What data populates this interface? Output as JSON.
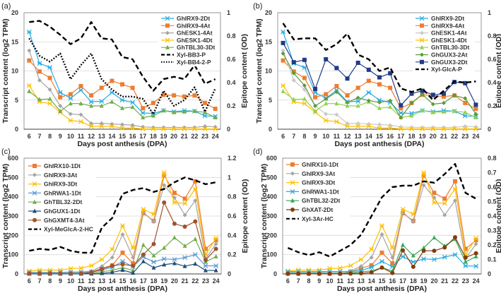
{
  "chart_data": [
    {
      "panel_label": "(a)",
      "type": "line",
      "xlabel": "Days post anthesis (DPA)",
      "ylabel": "Transcript content (log2 TPM)",
      "y2label": "Epitope content (OD)",
      "x": [
        6,
        7,
        8,
        9,
        10,
        11,
        12,
        13,
        14,
        15,
        16,
        17,
        18,
        19,
        20,
        21,
        22,
        23,
        24
      ],
      "ylim": [
        0,
        20
      ],
      "yticks": [
        0,
        5,
        10,
        15,
        20
      ],
      "y2lim": [
        0,
        1
      ],
      "y2ticks": [
        "0",
        "0.2",
        "0.4",
        "0.6",
        "0.8",
        "1"
      ],
      "grid": true,
      "legend": "top-right",
      "series": [
        {
          "name": "GhIRX9-2Dt",
          "axis": "left",
          "color": "#29abe2",
          "marker": "x",
          "values": [
            16.7,
            11.3,
            10.6,
            6.3,
            5.3,
            6.7,
            4.7,
            4.8,
            6.3,
            5.0,
            4.6,
            2.8,
            2.7,
            3.2,
            3.0,
            3.2,
            3.1,
            2.3,
            2.2
          ]
        },
        {
          "name": "GhIRX9-4At",
          "axis": "left",
          "color": "#ed7d31",
          "marker": "square",
          "values": [
            11.8,
            9.9,
            8.8,
            5.5,
            6.0,
            7.4,
            5.8,
            7.1,
            8.3,
            7.7,
            7.1,
            3.6,
            4.5,
            5.9,
            5.8,
            5.6,
            5.8,
            4.5,
            3.5
          ]
        },
        {
          "name": "GhESK1-4At",
          "axis": "left",
          "color": "#a5a5a5",
          "marker": "diamond",
          "values": [
            13.5,
            8.4,
            6.8,
            4.0,
            2.6,
            2.5,
            1.0,
            1.0,
            0.9,
            0.8,
            0.7,
            0.4,
            0.3,
            0.3,
            0.3,
            0.3,
            0.3,
            0.5,
            0.4
          ]
        },
        {
          "name": "GhESK1-4Dt",
          "axis": "left",
          "color": "#ffc000",
          "marker": "x",
          "values": [
            7.5,
            4.7,
            4.4,
            2.9,
            1.5,
            1.3,
            0.5,
            0.5,
            0.5,
            0.2,
            0.2,
            0.05,
            0.05,
            0.05,
            0.05,
            0.05,
            0.05,
            0.05,
            0.05
          ]
        },
        {
          "name": "GhTBL30-3Dt",
          "axis": "left",
          "color": "#70ad47",
          "marker": "triangle",
          "values": [
            6.5,
            5.1,
            5.2,
            3.1,
            4.4,
            4.4,
            4.0,
            4.0,
            4.7,
            3.6,
            3.8,
            2.0,
            2.3,
            3.2,
            2.9,
            3.0,
            3.1,
            2.9,
            2.0
          ]
        },
        {
          "name": "Xyl-BB3-P",
          "axis": "right",
          "color": "#000000",
          "dash": "dash",
          "values": [
            0.92,
            0.93,
            0.88,
            0.81,
            0.73,
            0.78,
            0.92,
            0.78,
            0.77,
            0.62,
            0.6,
            0.45,
            0.33,
            0.43,
            0.45,
            0.43,
            0.55,
            0.39,
            0.43
          ]
        },
        {
          "name": "Xyl-BB4-2-P",
          "axis": "right",
          "color": "#000000",
          "dash": "dot",
          "values": [
            0.78,
            0.63,
            0.58,
            0.65,
            0.43,
            0.55,
            0.65,
            0.43,
            0.34,
            0.28,
            0.28,
            0.26,
            0.13,
            0.33,
            0.2,
            0.25,
            0.36,
            0.15,
            0.35
          ]
        }
      ]
    },
    {
      "panel_label": "(b)",
      "type": "line",
      "xlabel": "Days post anthesis (DPA)",
      "ylabel": "Transcript content (log2 TPM)",
      "y2label": "Epitope content (OD)",
      "x": [
        6,
        7,
        8,
        9,
        10,
        11,
        12,
        13,
        14,
        15,
        16,
        17,
        18,
        19,
        20,
        21,
        22,
        23,
        24
      ],
      "ylim": [
        0,
        20
      ],
      "yticks": [
        0,
        5,
        10,
        15,
        20
      ],
      "y2lim": [
        0,
        1
      ],
      "y2ticks": [
        "0",
        "0.2",
        "0.4",
        "0.6",
        "0.8",
        "1"
      ],
      "grid": true,
      "legend": "top-right",
      "series": [
        {
          "name": "GhIRX9-2Dt",
          "axis": "left",
          "color": "#29abe2",
          "marker": "x",
          "values": [
            16.7,
            11.3,
            10.6,
            6.3,
            5.3,
            6.7,
            4.7,
            4.8,
            6.3,
            5.0,
            4.6,
            2.8,
            2.7,
            3.2,
            3.0,
            3.2,
            3.1,
            2.3,
            2.2
          ]
        },
        {
          "name": "GhIRX9-4At",
          "axis": "left",
          "color": "#ed7d31",
          "marker": "square",
          "values": [
            11.8,
            9.9,
            8.8,
            5.5,
            6.0,
            7.4,
            5.8,
            7.1,
            8.3,
            7.7,
            7.1,
            3.6,
            4.5,
            5.9,
            5.8,
            5.6,
            5.8,
            4.5,
            3.5
          ]
        },
        {
          "name": "GhESK1-4At",
          "axis": "left",
          "color": "#c9c9c9",
          "marker": "diamond",
          "values": [
            13.5,
            8.4,
            6.8,
            4.0,
            2.6,
            2.5,
            1.0,
            1.0,
            0.9,
            0.8,
            0.7,
            0.4,
            0.3,
            0.3,
            0.3,
            0.3,
            0.3,
            0.5,
            0.4
          ]
        },
        {
          "name": "GhESK1-4Dt",
          "axis": "left",
          "color": "#ffc000",
          "marker": "x",
          "values": [
            7.5,
            4.7,
            4.4,
            2.9,
            1.5,
            1.3,
            0.5,
            0.5,
            0.5,
            0.2,
            0.2,
            0.05,
            0.05,
            0.05,
            0.05,
            0.05,
            0.05,
            0.05,
            0.05
          ]
        },
        {
          "name": "GhTBL30-3Dt",
          "axis": "left",
          "color": "#92d050",
          "marker": "triangle",
          "values": [
            6.5,
            5.1,
            5.2,
            3.1,
            4.4,
            4.4,
            4.0,
            4.0,
            4.7,
            3.6,
            3.8,
            2.0,
            2.3,
            3.2,
            2.9,
            3.0,
            3.1,
            2.9,
            2.0
          ]
        },
        {
          "name": "GhGUX3-2At",
          "axis": "left",
          "color": "#5b9b3a",
          "marker": "diamond",
          "values": [
            13.0,
            9.6,
            7.5,
            4.0,
            5.2,
            6.4,
            4.6,
            5.4,
            4.9,
            4.6,
            4.9,
            2.0,
            4.5,
            6.0,
            4.3,
            4.5,
            5.8,
            5.3,
            2.6
          ]
        },
        {
          "name": "GhGUX3-2Dt",
          "axis": "left",
          "color": "#1f3c88",
          "marker": "square",
          "values": [
            14.8,
            11.5,
            11.9,
            6.9,
            12.0,
            10.5,
            8.7,
            11.4,
            10.2,
            8.9,
            9.6,
            4.1,
            6.1,
            6.6,
            5.9,
            6.1,
            8.1,
            7.9,
            4.2
          ]
        },
        {
          "name": "Xyl-GlcA-P",
          "axis": "right",
          "color": "#000000",
          "dash": "dash",
          "values": [
            0.91,
            0.77,
            0.78,
            0.78,
            0.68,
            0.73,
            0.82,
            0.64,
            0.6,
            0.5,
            0.53,
            0.35,
            0.32,
            0.35,
            0.25,
            0.33,
            0.41,
            0.4,
            0.41
          ]
        }
      ]
    },
    {
      "panel_label": "(c)",
      "type": "line",
      "xlabel": "Days post anthesis (DPA)",
      "ylabel": "Transcript content (log2 TPM)",
      "y2label": "Epitope content (OD)",
      "x": [
        6,
        7,
        8,
        9,
        10,
        11,
        12,
        13,
        14,
        15,
        16,
        17,
        18,
        19,
        20,
        21,
        22,
        23,
        24
      ],
      "ylim": [
        0,
        600
      ],
      "yticks": [
        0,
        100,
        200,
        300,
        400,
        500,
        600
      ],
      "y2lim": [
        0,
        1.2
      ],
      "y2ticks": [
        "0",
        "0.2",
        "0.4",
        "0.6",
        "0.8",
        "1",
        "1.2"
      ],
      "grid": true,
      "legend": "top-left",
      "series": [
        {
          "name": "GhIRX10-1Dt",
          "axis": "left",
          "color": "#ed7d31",
          "marker": "square",
          "values": [
            2,
            2,
            2,
            2,
            2,
            2,
            10,
            30,
            45,
            110,
            55,
            315,
            275,
            510,
            420,
            390,
            480,
            130,
            175
          ]
        },
        {
          "name": "GhIRX9-3At",
          "axis": "left",
          "color": "#a5a5a5",
          "marker": "diamond",
          "values": [
            8,
            8,
            8,
            8,
            10,
            10,
            15,
            40,
            85,
            205,
            85,
            320,
            270,
            460,
            395,
            305,
            380,
            80,
            155
          ]
        },
        {
          "name": "GhIRX9-3Dt",
          "axis": "left",
          "color": "#ffc000",
          "marker": "x",
          "values": [
            15,
            20,
            20,
            20,
            28,
            30,
            43,
            75,
            128,
            250,
            135,
            335,
            310,
            525,
            370,
            365,
            440,
            100,
            185
          ]
        },
        {
          "name": "GhRWA1-1Dt",
          "axis": "left",
          "color": "#5b9bd5",
          "marker": "x",
          "values": [
            8,
            8,
            8,
            8,
            8,
            8,
            10,
            20,
            35,
            65,
            38,
            88,
            62,
            78,
            75,
            85,
            100,
            42,
            42
          ]
        },
        {
          "name": "GhTBL32-2Dt",
          "axis": "left",
          "color": "#70ad47",
          "marker": "triangle",
          "values": [
            3,
            3,
            3,
            3,
            3,
            3,
            5,
            12,
            18,
            33,
            18,
            150,
            95,
            135,
            188,
            145,
            180,
            62,
            90
          ]
        },
        {
          "name": "GhGUX1-1Dt",
          "axis": "left",
          "color": "#1f4e79",
          "marker": "triangle",
          "values": [
            1,
            1,
            1,
            1,
            1,
            1,
            1,
            3,
            8,
            20,
            5,
            65,
            32,
            48,
            55,
            40,
            52,
            18,
            18
          ]
        },
        {
          "name": "GhGXMT4-3At",
          "axis": "left",
          "color": "#a0522d",
          "marker": "circle",
          "values": [
            2,
            2,
            2,
            2,
            2,
            2,
            8,
            25,
            42,
            50,
            42,
            100,
            155,
            370,
            260,
            245,
            272,
            72,
            130
          ]
        },
        {
          "name": "Xyl-MeGlcA-2-HC",
          "axis": "right",
          "color": "#000000",
          "dash": "dash",
          "values": [
            0.24,
            0.26,
            0.25,
            0.28,
            0.24,
            0.22,
            0.22,
            0.48,
            0.58,
            0.83,
            0.87,
            0.89,
            0.85,
            0.88,
            0.95,
            1.0,
            0.97,
            0.93,
            0.95
          ]
        }
      ]
    },
    {
      "panel_label": "(d)",
      "type": "line",
      "xlabel": "Days post anthesis (DPA)",
      "ylabel": "Transcript content (log2 TPM)",
      "y2label": "Epitope content (OD)",
      "x": [
        6,
        7,
        8,
        9,
        10,
        11,
        12,
        13,
        14,
        15,
        16,
        17,
        18,
        19,
        20,
        21,
        22,
        23,
        24
      ],
      "ylim": [
        0,
        600
      ],
      "yticks": [
        0,
        100,
        200,
        300,
        400,
        500,
        600
      ],
      "y2lim": [
        0,
        0.8
      ],
      "y2ticks": [
        "0",
        "0.1",
        "0.2",
        "0.3",
        "0.4",
        "0.5",
        "0.6",
        "0.7",
        "0.8"
      ],
      "grid": true,
      "legend": "top-left",
      "series": [
        {
          "name": "GhIRX10-1Dt",
          "axis": "left",
          "color": "#ed7d31",
          "marker": "square",
          "values": [
            2,
            2,
            2,
            2,
            2,
            2,
            10,
            30,
            45,
            110,
            55,
            315,
            275,
            510,
            420,
            390,
            480,
            130,
            175
          ]
        },
        {
          "name": "GhIRX9-3At",
          "axis": "left",
          "color": "#a5a5a5",
          "marker": "diamond",
          "values": [
            8,
            8,
            8,
            8,
            10,
            10,
            15,
            40,
            85,
            205,
            85,
            320,
            270,
            460,
            395,
            305,
            380,
            80,
            155
          ]
        },
        {
          "name": "GhIRX9-3Dt",
          "axis": "left",
          "color": "#ffc000",
          "marker": "x",
          "values": [
            15,
            20,
            20,
            20,
            28,
            30,
            43,
            75,
            128,
            250,
            135,
            335,
            310,
            525,
            370,
            365,
            440,
            100,
            185
          ]
        },
        {
          "name": "GhRWA1-1Dt",
          "axis": "left",
          "color": "#29abe2",
          "marker": "x",
          "values": [
            12,
            12,
            12,
            12,
            12,
            12,
            12,
            18,
            35,
            65,
            38,
            90,
            62,
            78,
            75,
            87,
            100,
            42,
            40
          ]
        },
        {
          "name": "GhTBL32-2Dt",
          "axis": "left",
          "color": "#3aa655",
          "marker": "triangle",
          "values": [
            3,
            3,
            3,
            3,
            3,
            3,
            5,
            12,
            15,
            33,
            15,
            150,
            95,
            135,
            188,
            145,
            180,
            62,
            90
          ]
        },
        {
          "name": "GhXAT-2Dt",
          "axis": "left",
          "color": "#843c0c",
          "marker": "circle",
          "values": [
            1,
            1,
            1,
            1,
            1,
            1,
            2,
            3,
            8,
            33,
            5,
            122,
            37,
            120,
            120,
            137,
            190,
            85,
            107
          ]
        },
        {
          "name": "Xyl-3Ar-HC",
          "axis": "right",
          "color": "#000000",
          "dash": "dash",
          "values": [
            0.18,
            0.15,
            0.13,
            0.15,
            0.12,
            0.16,
            0.2,
            0.27,
            0.4,
            0.53,
            0.6,
            0.61,
            0.61,
            0.64,
            0.63,
            0.69,
            0.76,
            0.56,
            0.52
          ]
        }
      ]
    }
  ]
}
